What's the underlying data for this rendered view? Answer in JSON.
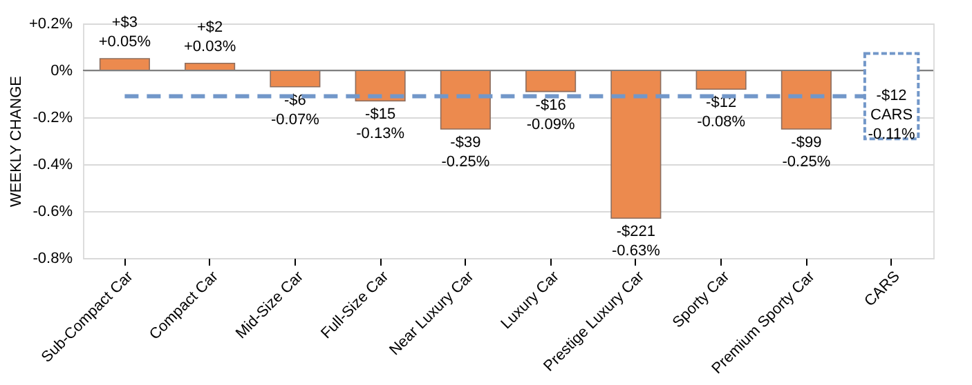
{
  "chart_data": {
    "type": "bar",
    "ylabel": "WEEKLY CHANGE",
    "categories": [
      "Sub-Compact Car",
      "Compact Car",
      "Mid-Size Car",
      "Full-Size Car",
      "Near Luxury Car",
      "Luxury Car",
      "Prestige Luxury Car",
      "Sporty Car",
      "Premium Sporty Car",
      "CARS"
    ],
    "values": [
      0.05,
      0.03,
      -0.07,
      -0.13,
      -0.25,
      -0.09,
      -0.63,
      -0.08,
      -0.25,
      null
    ],
    "value_labels": [
      "+$3\n+0.05%",
      "+$2\n+0.03%",
      "-$6\n-0.07%",
      "-$15\n-0.13%",
      "-$39\n-0.25%",
      "-$16\n-0.09%",
      "-$221\n-0.63%",
      "-$12\n-0.08%",
      "-$99\n-0.25%",
      null
    ],
    "color": "#ec8a4e",
    "ylim": [
      -0.8,
      0.2
    ],
    "yticks": [
      {
        "value": 0.2,
        "label": "+0.2%"
      },
      {
        "value": 0,
        "label": "0%"
      },
      {
        "value": -0.2,
        "label": "-0.2%"
      },
      {
        "value": -0.4,
        "label": "-0.4%"
      },
      {
        "value": -0.6,
        "label": "-0.6%"
      },
      {
        "value": -0.8,
        "label": "-0.8%"
      }
    ],
    "grid": "y",
    "ref_lines": [
      {
        "axis": "y",
        "value": -0.11,
        "label": "-$12\nCARS\n-0.11%",
        "color": "#7297c9",
        "line_style": "dashed"
      }
    ]
  }
}
